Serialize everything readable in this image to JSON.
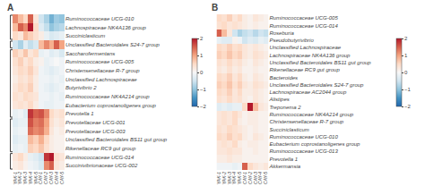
{
  "chart_data": [
    {
      "type": "heatmap",
      "title": "A",
      "x": [
        "YAK-1",
        "YAK-2",
        "YAK-3",
        "YAK-4",
        "YAK-5",
        "CAY-1",
        "CAY-2",
        "CAY-3",
        "CAY-4",
        "CAY-5"
      ],
      "y": [
        "Ruminococcaceae UCG-010",
        "Lachnospiraceae NK4A136 group",
        "Succiniclasticum",
        "Unclassified Bacteroidales S24-7 group",
        "Saccharofermentans",
        "Ruminococcaceae UCG-005",
        "Christensenellaceae R-7 group",
        "Unclassified Lachnospiraceae",
        "Butyrivibrio 2",
        "Ruminococcaceae NK4A214 group",
        "Eubacterium coprostanoligenes group",
        "Prevotella 1",
        "Prevotellaceae UCG-001",
        "Prevotellaceae UCG-003",
        "Unclassified Bacteroidales BS11 gut group",
        "Rikenellaceae RC9 gut group",
        "Ruminococcaceae UCG-014",
        "Succinivibrionaceae UCG-002"
      ],
      "values": [
        [
          1.2,
          0.8,
          0.5,
          1.5,
          0.3,
          -0.5,
          -0.8,
          -1.2,
          -0.9,
          -1.0
        ],
        [
          0.8,
          1.5,
          1.2,
          2.0,
          0.5,
          -0.3,
          -0.6,
          -1.0,
          -0.8,
          -0.7
        ],
        [
          0.5,
          0.3,
          0.8,
          0.6,
          0.4,
          0.2,
          -0.2,
          -0.4,
          -0.3,
          -0.2
        ],
        [
          -0.5,
          -0.8,
          -0.3,
          -0.6,
          -0.4,
          0.8,
          1.2,
          0.9,
          1.5,
          1.0
        ],
        [
          0.6,
          0.4,
          0.7,
          0.3,
          0.5,
          -0.2,
          -0.1,
          -0.3,
          -0.2,
          -0.4
        ],
        [
          0.4,
          0.6,
          0.3,
          0.5,
          0.2,
          0.1,
          -0.2,
          -0.1,
          0.0,
          -0.1
        ],
        [
          0.3,
          0.5,
          0.4,
          0.6,
          0.3,
          -0.1,
          -0.2,
          -0.3,
          -0.2,
          -0.1
        ],
        [
          0.2,
          0.4,
          0.3,
          0.5,
          0.2,
          -0.1,
          -0.1,
          -0.2,
          -0.1,
          -0.2
        ],
        [
          0.3,
          0.5,
          0.4,
          0.6,
          0.2,
          -0.1,
          -0.2,
          -0.3,
          -0.2,
          -0.1
        ],
        [
          0.4,
          0.3,
          0.5,
          0.4,
          0.3,
          -0.1,
          -0.1,
          -0.2,
          -0.1,
          -0.2
        ],
        [
          0.3,
          0.4,
          0.3,
          0.5,
          0.2,
          -0.1,
          -0.2,
          -0.2,
          -0.1,
          -0.1
        ],
        [
          -0.2,
          -0.1,
          -0.3,
          1.8,
          1.5,
          1.6,
          1.2,
          0.5,
          0.3,
          0.4
        ],
        [
          -0.3,
          -0.2,
          -0.2,
          1.6,
          1.3,
          1.4,
          1.0,
          0.4,
          0.2,
          0.3
        ],
        [
          -0.2,
          -0.1,
          -0.1,
          1.4,
          1.2,
          1.3,
          0.9,
          0.3,
          0.1,
          0.2
        ],
        [
          -0.3,
          -0.2,
          -0.2,
          0.8,
          0.6,
          0.9,
          0.5,
          0.2,
          0.1,
          0.1
        ],
        [
          -0.2,
          -0.1,
          -0.2,
          0.6,
          0.5,
          0.7,
          0.4,
          0.2,
          0.1,
          0.1
        ],
        [
          0.3,
          0.5,
          0.2,
          -0.2,
          -0.3,
          -0.5,
          1.8,
          2.0,
          0.4,
          0.3
        ],
        [
          0.2,
          0.3,
          0.1,
          -0.1,
          -0.2,
          -0.4,
          1.2,
          1.5,
          0.3,
          0.2
        ]
      ],
      "dendro_groups": [
        [
          0,
          2
        ],
        [
          3,
          3
        ],
        [
          4,
          11
        ],
        [
          12,
          15
        ],
        [
          16,
          17
        ]
      ],
      "colorscale": [
        "#2166ac",
        "#4393c3",
        "#92c5de",
        "#d1e5f0",
        "#f7f7f7",
        "#fddbc7",
        "#f4a582",
        "#d6604d",
        "#b2182b"
      ],
      "colorbar_range": [
        -2,
        2
      ],
      "colorbar_ticks": [
        -2,
        -1,
        0,
        1,
        2
      ],
      "grid": false
    },
    {
      "type": "heatmap",
      "title": "B",
      "x": [
        "YAK-1",
        "YAK-2",
        "YAK-3",
        "YAK-4",
        "YAK-5",
        "CAY-1",
        "CAY-2",
        "CAY-3",
        "CAY-4",
        "CAY-5"
      ],
      "y": [
        "Ruminococcaceae UCG-005",
        "Ruminococcaceae UCG-014",
        "Roseburia",
        "Pseudobutyrivibrio",
        "Unclassified Lachnospiraceae",
        "Lachnospiraceae NK4A136 group",
        "Unclassified Bacteroidales BS11 gut group",
        "Rikenellaceae RC9 gut group",
        "Bacteroides",
        "Unclassified Bacteroidales S24-7 group",
        "Lachnospiraceae AC2044 group",
        "Alistipes",
        "Treponema 2",
        "Ruminococcaceae NK4A214 group",
        "Christensenellaceae R-7 group",
        "Succiniclasticum",
        "Ruminococcaceae UCG-010",
        "Eubacterium coprostanoligenes group",
        "Ruminococcaceae UCG-013",
        "Prevotella 1",
        "Akkermansia"
      ],
      "values": [
        [
          0.5,
          0.4,
          0.6,
          0.3,
          0.5,
          0.2,
          0.1,
          0.3,
          0.2,
          0.1
        ],
        [
          0.4,
          0.5,
          0.3,
          0.4,
          0.3,
          0.2,
          0.1,
          0.2,
          0.1,
          0.1
        ],
        [
          1.5,
          0.8,
          0.3,
          -0.5,
          -0.8,
          -0.6,
          -0.5,
          -0.7,
          -0.5,
          -0.6
        ],
        [
          -0.2,
          -0.3,
          -0.3,
          0.1,
          -0.1,
          -0.5,
          -0.3,
          -0.4,
          -0.2,
          -0.3
        ],
        [
          0.5,
          0.4,
          0.6,
          0.4,
          0.5,
          0.3,
          0.2,
          0.3,
          0.2,
          0.1
        ],
        [
          0.6,
          0.5,
          0.7,
          0.5,
          0.6,
          0.3,
          0.2,
          0.4,
          0.3,
          0.2
        ],
        [
          0.4,
          0.3,
          0.5,
          0.3,
          0.4,
          0.2,
          0.1,
          0.3,
          0.2,
          0.1
        ],
        [
          0.3,
          0.2,
          0.4,
          0.2,
          0.3,
          0.1,
          0.1,
          0.2,
          0.1,
          0.1
        ],
        [
          0.5,
          0.4,
          0.6,
          0.3,
          0.5,
          0.2,
          0.1,
          0.3,
          0.2,
          0.1
        ],
        [
          0.6,
          0.5,
          0.7,
          0.4,
          0.6,
          0.3,
          0.2,
          0.4,
          0.3,
          0.2
        ],
        [
          0.5,
          0.4,
          0.6,
          0.3,
          0.5,
          0.2,
          0.2,
          0.3,
          0.2,
          0.1
        ],
        [
          0.4,
          0.3,
          0.5,
          0.3,
          0.4,
          0.2,
          0.1,
          0.3,
          0.2,
          0.1
        ],
        [
          -0.3,
          -0.2,
          -0.3,
          -0.2,
          -0.2,
          0.5,
          2.0,
          0.8,
          0.3,
          0.2
        ],
        [
          0.3,
          0.4,
          0.3,
          0.5,
          0.3,
          0.1,
          0.2,
          0.2,
          0.1,
          0.1
        ],
        [
          0.3,
          0.4,
          0.3,
          0.5,
          0.2,
          0.1,
          0.2,
          0.2,
          0.1,
          0.1
        ],
        [
          0.4,
          0.3,
          0.5,
          0.4,
          0.3,
          0.2,
          0.1,
          0.2,
          0.1,
          0.1
        ],
        [
          0.5,
          0.4,
          0.6,
          0.4,
          0.5,
          0.2,
          0.1,
          0.3,
          0.2,
          0.1
        ],
        [
          0.3,
          0.4,
          0.3,
          0.5,
          0.2,
          0.1,
          0.2,
          0.2,
          0.1,
          0.1
        ],
        [
          0.3,
          0.3,
          0.4,
          0.3,
          0.3,
          0.1,
          0.1,
          0.2,
          0.1,
          0.1
        ],
        [
          0.2,
          0.2,
          0.3,
          0.2,
          0.2,
          0.1,
          0.1,
          0.1,
          0.1,
          0.1
        ],
        [
          -0.1,
          -0.1,
          -0.1,
          -0.2,
          -0.1,
          1.5,
          0.5,
          0.3,
          0.2,
          0.3
        ]
      ],
      "colorscale": [
        "#2166ac",
        "#4393c3",
        "#92c5de",
        "#d1e5f0",
        "#f7f7f7",
        "#fddbc7",
        "#f4a582",
        "#d6604d",
        "#b2182b"
      ],
      "colorbar_range": [
        -2,
        2
      ],
      "colorbar_ticks": [
        -2,
        -1,
        0,
        1,
        2
      ],
      "grid": false
    }
  ]
}
